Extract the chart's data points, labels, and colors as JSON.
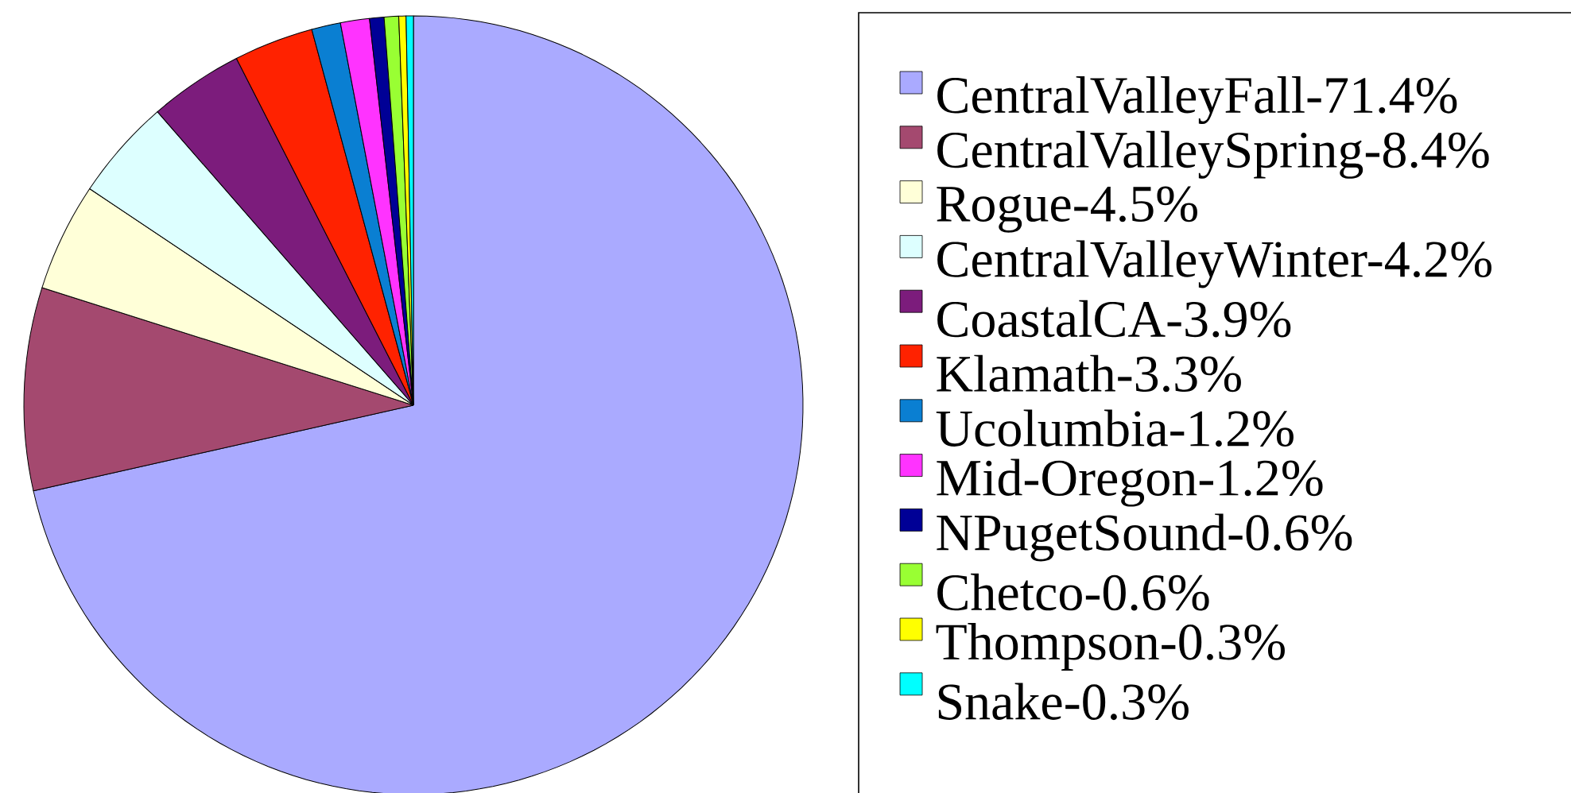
{
  "chart_data": {
    "type": "pie",
    "categories": [
      "CentralValleyFall-71.4%",
      "CentralValleySpring-8.4%",
      "Rogue-4.5%",
      "CentralValleyWinter-4.2%",
      "CoastalCA-3.9%",
      "Klamath-3.3%",
      "Ucolumbia-1.2%",
      "Mid-Oregon-1.2%",
      "NPugetSound-0.6%",
      "Chetco-0.6%",
      "Thompson-0.3%",
      "Snake-0.3%"
    ],
    "values": [
      71.4,
      8.4,
      4.5,
      4.2,
      3.9,
      3.3,
      1.2,
      1.2,
      0.6,
      0.6,
      0.3,
      0.3
    ],
    "colors": [
      "#aaaaff",
      "#a4496f",
      "#ffffd8",
      "#ddffff",
      "#7c1c7c",
      "#ff2200",
      "#0a7fd2",
      "#ff33ff",
      "#000096",
      "#99ff33",
      "#ffff00",
      "#00ffff"
    ],
    "legend": "right"
  }
}
